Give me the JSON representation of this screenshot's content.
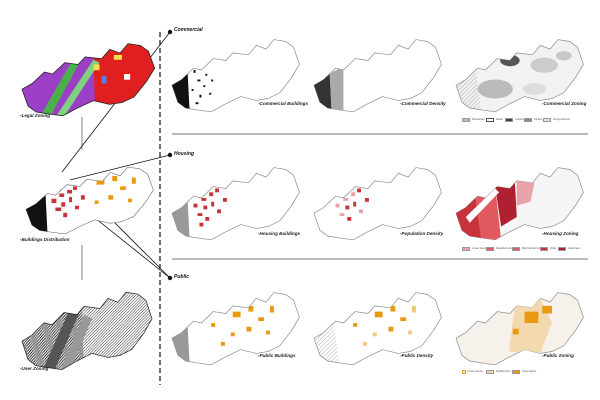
{
  "colors": {
    "commercial": "#333333",
    "housing": "#c8323a",
    "public": "#e89a10",
    "legal_red": "#e02020",
    "legal_purple": "#9b3fc6",
    "legal_green": "#4ab04a"
  },
  "left": {
    "legal_zoning": "-Legal Zoning",
    "buildings_distribution": "-Buildings Distribution",
    "user_zoning": "-User Zoning"
  },
  "sections": {
    "commercial": {
      "title": "Commercial",
      "labels": [
        "-Commercial Buildings",
        "-Commercial Density",
        "-Commercial Zoning"
      ],
      "legend": [
        "Restaurant",
        "Retail",
        "cultural",
        "kitchen",
        "Living+Service"
      ]
    },
    "housing": {
      "title": "Housing",
      "labels": [
        "-Housing Buildings",
        "-Population Density",
        "-Housing Zoning"
      ],
      "legend": [
        "Linear House",
        "Detached House",
        "Multi Family House",
        "Villas",
        "Apartment"
      ]
    },
    "public": {
      "title": "Public",
      "labels": [
        "-Public Buildings",
        "-Public Density",
        "-Public Zoning"
      ],
      "legend": [
        "Urban Center",
        "Multifunction",
        "Open Space"
      ]
    }
  }
}
